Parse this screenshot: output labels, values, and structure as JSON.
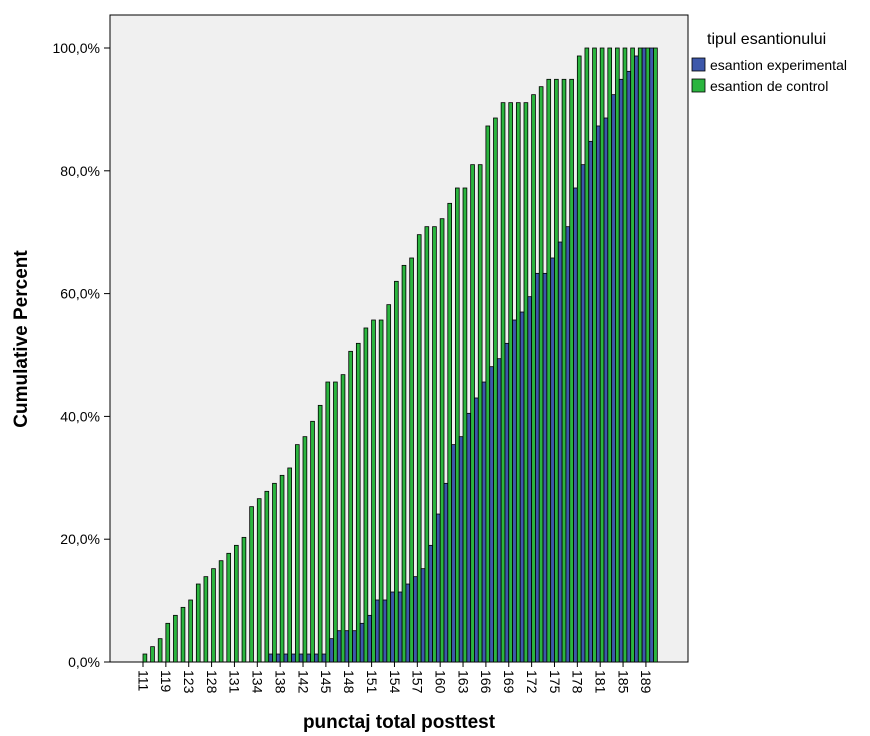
{
  "chart_data": {
    "type": "bar",
    "title": "",
    "xlabel": "punctaj total posttest",
    "ylabel": "Cumulative Percent",
    "ylim": [
      0,
      100
    ],
    "yticks": [
      0,
      20,
      40,
      60,
      80,
      100
    ],
    "ytick_labels": [
      "0,0%",
      "20,0%",
      "40,0%",
      "60,0%",
      "80,0%",
      "100,0%"
    ],
    "grid": false,
    "background": "#f0f0f0",
    "categories": [
      "111",
      "",
      "",
      "119",
      "",
      "",
      "123",
      "",
      "",
      "128",
      "",
      "",
      "131",
      "",
      "",
      "134",
      "",
      "",
      "138",
      "",
      "",
      "142",
      "",
      "",
      "145",
      "",
      "",
      "148",
      "",
      "",
      "151",
      "",
      "",
      "154",
      "",
      "",
      "157",
      "",
      "",
      "160",
      "",
      "",
      "163",
      "",
      "",
      "166",
      "",
      "",
      "169",
      "",
      "",
      "172",
      "",
      "",
      "175",
      "",
      "",
      "178",
      "",
      "",
      "181",
      "",
      "",
      "185",
      "",
      "",
      "189",
      ""
    ],
    "series": [
      {
        "name": "esantion experimental",
        "color": "#3d58aa",
        "values": [
          0,
          0,
          0,
          0,
          0,
          0,
          0,
          0,
          0,
          0,
          0,
          0,
          0,
          0,
          0,
          0,
          0,
          1.3,
          1.3,
          1.3,
          1.3,
          1.3,
          1.3,
          1.3,
          1.3,
          3.8,
          5.1,
          5.1,
          5.1,
          6.3,
          7.6,
          10.1,
          10.1,
          11.4,
          11.4,
          12.7,
          13.9,
          15.2,
          19.0,
          24.1,
          29.1,
          35.4,
          36.7,
          40.5,
          43.0,
          45.6,
          48.1,
          49.4,
          51.9,
          55.7,
          57.0,
          59.5,
          63.3,
          63.3,
          65.8,
          68.4,
          70.9,
          77.2,
          81.0,
          84.8,
          87.3,
          88.6,
          92.4,
          94.9,
          96.2,
          98.7,
          100,
          100
        ]
      },
      {
        "name": "esantion de control",
        "color": "#2bb53f",
        "values": [
          1.3,
          2.5,
          3.8,
          6.3,
          7.6,
          8.9,
          10.1,
          12.7,
          13.9,
          15.2,
          16.5,
          17.7,
          19.0,
          20.3,
          25.3,
          26.6,
          27.8,
          29.1,
          30.4,
          31.6,
          35.4,
          36.7,
          39.2,
          41.8,
          45.6,
          45.6,
          46.8,
          50.6,
          51.9,
          54.4,
          55.7,
          55.7,
          58.2,
          62.0,
          64.6,
          65.8,
          69.6,
          70.9,
          70.9,
          72.2,
          74.7,
          77.2,
          77.2,
          81.0,
          81.0,
          87.3,
          88.6,
          91.1,
          91.1,
          91.1,
          91.1,
          92.4,
          93.7,
          94.9,
          94.9,
          94.9,
          94.9,
          98.7,
          100,
          100,
          100,
          100,
          100,
          100,
          100,
          100,
          100,
          100
        ]
      }
    ],
    "legend": {
      "title": "tipul esantionului",
      "position": "right"
    }
  }
}
